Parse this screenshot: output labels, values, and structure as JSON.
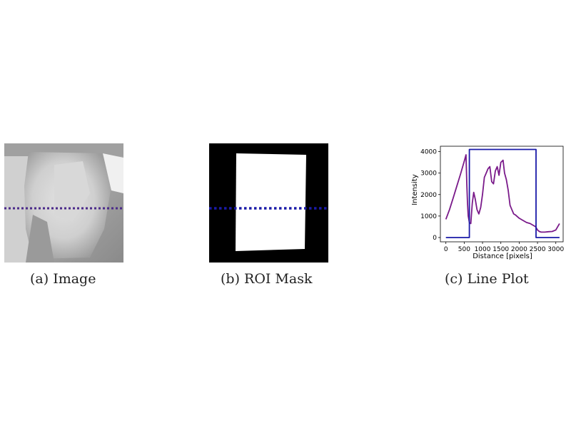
{
  "captions": {
    "a": "(a) Image",
    "b": "(b) ROI Mask",
    "c": "(c) Line Plot"
  },
  "colors": {
    "profile_line": "#7a1a8a",
    "mask_line": "#1a1aa8",
    "dotted_line_a": "#4b2a8a",
    "dotted_line_b": "#1a1aa8"
  },
  "chart_data": {
    "type": "line",
    "title": "",
    "xlabel": "Distance [pixels]",
    "ylabel": "Intensity",
    "xlim": [
      -150,
      3200
    ],
    "ylim": [
      -200,
      4250
    ],
    "x_ticks": [
      0,
      500,
      1000,
      1500,
      2000,
      2500,
      3000
    ],
    "y_ticks": [
      0,
      1000,
      2000,
      3000,
      4000
    ],
    "series": [
      {
        "color": "#7a1a8a",
        "x": [
          0,
          100,
          200,
          300,
          400,
          500,
          550,
          570,
          590,
          610,
          640,
          680,
          720,
          760,
          800,
          850,
          900,
          950,
          1000,
          1050,
          1100,
          1150,
          1200,
          1250,
          1300,
          1350,
          1400,
          1450,
          1500,
          1530,
          1560,
          1600,
          1650,
          1700,
          1750,
          1800,
          1850,
          1900,
          2000,
          2100,
          2200,
          2300,
          2400,
          2450,
          2500,
          2550,
          2600,
          2700,
          2800,
          2900,
          3000,
          3050,
          3100
        ],
        "y": [
          850,
          1300,
          1850,
          2400,
          2950,
          3550,
          3850,
          2500,
          1600,
          1000,
          700,
          650,
          1600,
          2100,
          1800,
          1300,
          1100,
          1400,
          2000,
          2800,
          3000,
          3200,
          3300,
          2600,
          2500,
          3100,
          3300,
          2900,
          3500,
          3550,
          3600,
          3000,
          2700,
          2200,
          1500,
          1300,
          1100,
          1050,
          900,
          800,
          700,
          650,
          550,
          500,
          350,
          280,
          250,
          250,
          270,
          280,
          350,
          500,
          650
        ]
      },
      {
        "color": "#1a1aa8",
        "x": [
          0,
          640,
          640,
          2460,
          2460,
          3100
        ],
        "y": [
          0,
          0,
          4100,
          4100,
          0,
          0
        ]
      }
    ]
  }
}
